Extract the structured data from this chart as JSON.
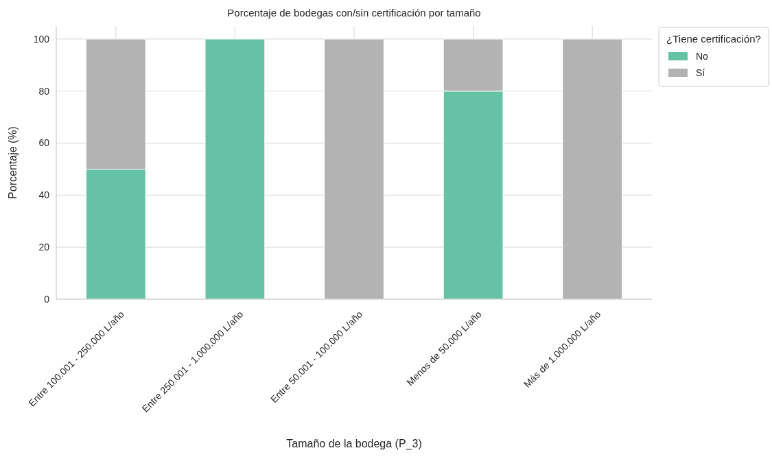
{
  "chart_data": {
    "type": "bar",
    "title": "Porcentaje de bodegas con/sin certificación por tamaño",
    "xlabel": "Tamaño de la bodega (P_3)",
    "ylabel": "Porcentaje (%)",
    "legend_title": "¿Tiene certificación?",
    "categories": [
      "Entre 100.001 - 250.000 L/año",
      "Entre 250.001 - 1.000.000 L/año",
      "Entre 50.001 - 100.000 L/año",
      "Menos de 50.000 L/año",
      "Más de 1.000.000 L/año"
    ],
    "series": [
      {
        "name": "No",
        "color": "#66c2a5",
        "values": [
          50,
          100,
          0,
          80,
          0
        ]
      },
      {
        "name": "Sí",
        "color": "#b3b3b3",
        "values": [
          50,
          0,
          100,
          20,
          100
        ]
      }
    ],
    "stacked": true,
    "ylim": [
      0,
      105
    ],
    "yticks": [
      0,
      20,
      40,
      60,
      80,
      100
    ],
    "grid": true,
    "legend": "top right"
  }
}
